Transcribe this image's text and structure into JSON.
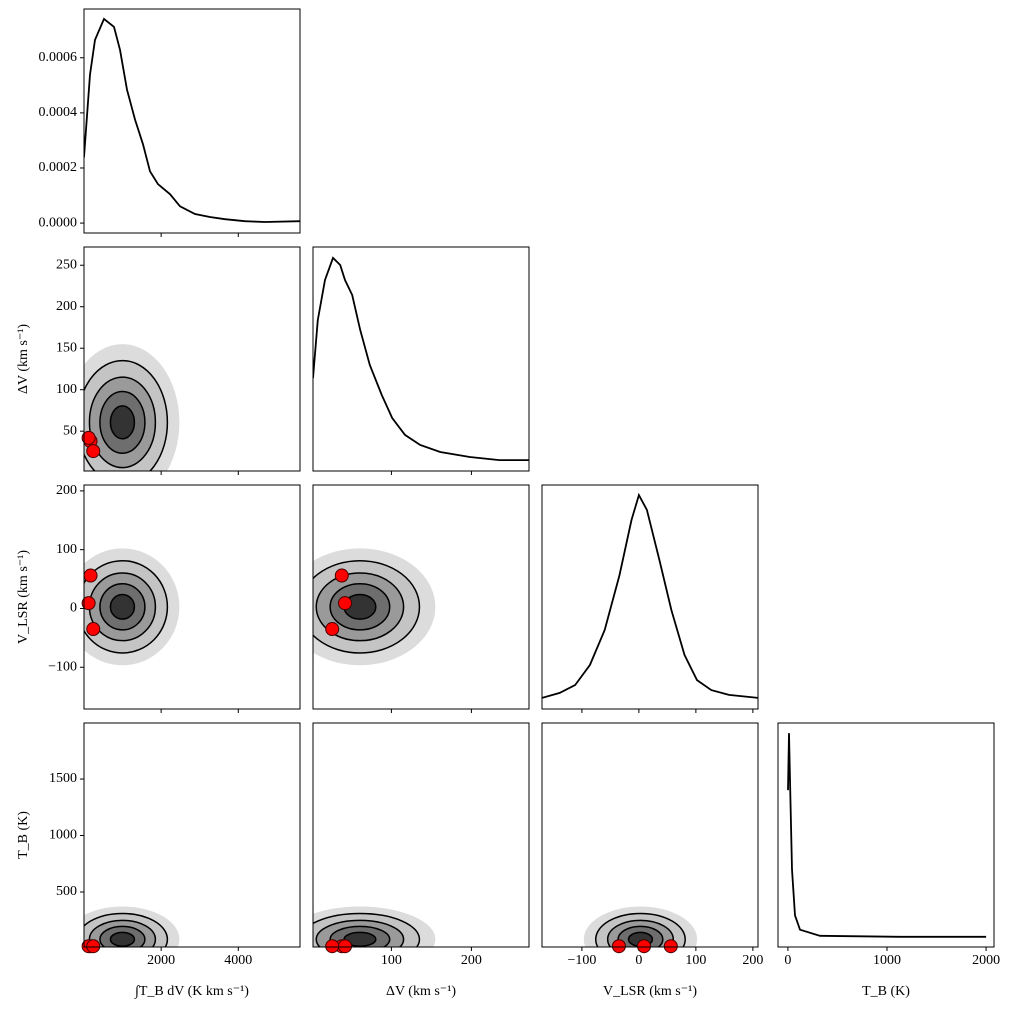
{
  "chart_data": {
    "type": "corner",
    "color": "#000000",
    "truth_color": "#ff0000",
    "variables": [
      {
        "label": "∫T_B dV (K km s⁻¹)",
        "xlim": [
          0,
          5600
        ],
        "xticks": [
          2000,
          4000
        ],
        "x": [
          0,
          155,
          285,
          518,
          777,
          933,
          1114,
          1321,
          1529,
          1710,
          1918,
          2229,
          2488,
          2877,
          3265,
          3654,
          4173,
          4691,
          5600
        ],
        "density": [
          0.000239,
          0.000539,
          0.000665,
          0.000741,
          0.000712,
          0.000629,
          0.000484,
          0.000376,
          0.000286,
          0.000188,
          0.000141,
          0.000105,
          6.1e-05,
          3.3e-05,
          2.2e-05,
          1.4e-05,
          7e-06,
          4e-06,
          7e-06
        ],
        "density_lim": [
          -3.6e-05,
          0.000777
        ],
        "density_ticks": [
          {
            "value": 0,
            "label": "0.0000"
          },
          {
            "value": 0.0002,
            "label": "0.0002"
          },
          {
            "value": 0.0004,
            "label": "0.0004"
          },
          {
            "value": 0.0006,
            "label": "0.0006"
          }
        ],
        "truths": [
          170,
          120,
          240
        ]
      },
      {
        "label": "ΔV (km s⁻¹)",
        "xlim": [
          2,
          272
        ],
        "ylim": [
          2,
          272
        ],
        "xticks": [
          100,
          200
        ],
        "yticks": [
          50,
          100,
          150,
          200,
          250
        ],
        "x": [
          2,
          8,
          17,
          27,
          36,
          42,
          51,
          61,
          73,
          88,
          101,
          117,
          136,
          161,
          198,
          235,
          272
        ],
        "density": [
          0.00514,
          0.00853,
          0.01087,
          0.01216,
          0.01175,
          0.01087,
          0.00999,
          0.00795,
          0.0059,
          0.00414,
          0.0028,
          0.00181,
          0.00122,
          0.00081,
          0.00052,
          0.00034,
          0.00034
        ],
        "density_lim": [
          -0.0003,
          0.0128
        ],
        "truths": [
          38,
          42,
          26
        ]
      },
      {
        "label": "V_LSR (km s⁻¹)",
        "xlim": [
          -170,
          209
        ],
        "ylim": [
          -171,
          210
        ],
        "xticks": [
          {
            "value": -100,
            "label": "−100"
          },
          0,
          100,
          200
        ],
        "yticks": [
          {
            "value": -100,
            "label": "−100"
          },
          0,
          100,
          200
        ],
        "x": [
          -170,
          -139,
          -112,
          -86,
          -60,
          -34,
          -13,
          0,
          14,
          36,
          57,
          80,
          102,
          127,
          158,
          209
        ],
        "density": [
          4e-05,
          0.00024,
          0.00055,
          0.00135,
          0.00274,
          0.00492,
          0.00711,
          0.0081,
          0.00751,
          0.00552,
          0.00353,
          0.00175,
          0.00075,
          0.00035,
          0.00016,
          4e-05
        ],
        "density_lim": [
          -0.0004,
          0.0085
        ],
        "truths": [
          56,
          9,
          -35
        ]
      },
      {
        "label": "T_B (K)",
        "xlim": [
          -100,
          2080
        ],
        "ylim": [
          13,
          1996
        ],
        "xticks": [
          0,
          1000,
          2000
        ],
        "yticks": [
          500,
          1000,
          1500
        ],
        "x": [
          1,
          11,
          21,
          41,
          72,
          122,
          324,
          1131,
          2000
        ],
        "density": [
          0.0144,
          0.02,
          0.0154,
          0.0066,
          0.0021,
          0.0007,
          0.0001,
          0,
          0
        ],
        "density_lim": [
          -0.001,
          0.021
        ],
        "truths": [
          20,
          20,
          20
        ]
      }
    ]
  }
}
